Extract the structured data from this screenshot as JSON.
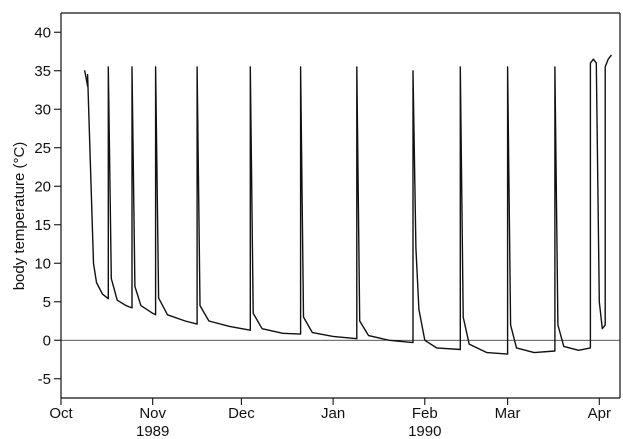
{
  "chart_data": {
    "type": "line",
    "title": "",
    "xlabel": "",
    "ylabel": "body temperature (°C)",
    "xlim": [
      "1989-10-01",
      "1990-04-08"
    ],
    "ylim": [
      -7.5,
      42.5
    ],
    "x_ticks": [
      {
        "date": "1989-10-01",
        "label": "Oct"
      },
      {
        "date": "1989-11-01",
        "label": "Nov"
      },
      {
        "date": "1989-12-01",
        "label": "Dec"
      },
      {
        "date": "1990-01-01",
        "label": "Jan"
      },
      {
        "date": "1990-02-01",
        "label": "Feb"
      },
      {
        "date": "1990-03-01",
        "label": "Mar"
      },
      {
        "date": "1990-04-01",
        "label": "Apr"
      }
    ],
    "year_labels": [
      {
        "date": "1989-11-01",
        "label": "1989"
      },
      {
        "date": "1990-02-01",
        "label": "1990"
      }
    ],
    "y_ticks": [
      -5,
      0,
      5,
      10,
      15,
      20,
      25,
      30,
      35,
      40
    ],
    "reference_line": 0,
    "grid": false,
    "legend": "none",
    "series": [
      {
        "points": [
          [
            "1989-10-09",
            35.0
          ],
          [
            "1989-10-10",
            33.0
          ],
          [
            "1989-10-10",
            34.5
          ],
          [
            "1989-10-11",
            22.0
          ],
          [
            "1989-10-12",
            10.0
          ],
          [
            "1989-10-13",
            7.5
          ],
          [
            "1989-10-15",
            6.0
          ],
          [
            "1989-10-17",
            5.4
          ],
          [
            "1989-10-17",
            35.5
          ],
          [
            "1989-10-18",
            8.0
          ],
          [
            "1989-10-20",
            5.2
          ],
          [
            "1989-10-23",
            4.5
          ],
          [
            "1989-10-25",
            4.2
          ],
          [
            "1989-10-25",
            35.5
          ],
          [
            "1989-10-26",
            7.0
          ],
          [
            "1989-10-28",
            4.5
          ],
          [
            "1989-11-01",
            3.5
          ],
          [
            "1989-11-02",
            3.3
          ],
          [
            "1989-11-02",
            35.5
          ],
          [
            "1989-11-03",
            5.5
          ],
          [
            "1989-11-06",
            3.3
          ],
          [
            "1989-11-12",
            2.5
          ],
          [
            "1989-11-16",
            2.1
          ],
          [
            "1989-11-16",
            35.5
          ],
          [
            "1989-11-17",
            4.5
          ],
          [
            "1989-11-20",
            2.5
          ],
          [
            "1989-11-27",
            1.8
          ],
          [
            "1989-12-04",
            1.3
          ],
          [
            "1989-12-04",
            35.5
          ],
          [
            "1989-12-05",
            3.5
          ],
          [
            "1989-12-08",
            1.5
          ],
          [
            "1989-12-15",
            0.9
          ],
          [
            "1989-12-21",
            0.8
          ],
          [
            "1989-12-21",
            35.5
          ],
          [
            "1989-12-22",
            3.0
          ],
          [
            "1989-12-25",
            1.0
          ],
          [
            "1990-01-01",
            0.5
          ],
          [
            "1990-01-09",
            0.2
          ],
          [
            "1990-01-09",
            35.5
          ],
          [
            "1990-01-10",
            2.5
          ],
          [
            "1990-01-13",
            0.6
          ],
          [
            "1990-01-20",
            0.0
          ],
          [
            "1990-01-28",
            -0.3
          ],
          [
            "1990-01-28",
            35.0
          ],
          [
            "1990-01-29",
            12.0
          ],
          [
            "1990-01-30",
            4.0
          ],
          [
            "1990-02-01",
            0.0
          ],
          [
            "1990-02-05",
            -1.0
          ],
          [
            "1990-02-13",
            -1.2
          ],
          [
            "1990-02-13",
            35.5
          ],
          [
            "1990-02-14",
            3.0
          ],
          [
            "1990-02-16",
            -0.5
          ],
          [
            "1990-02-22",
            -1.6
          ],
          [
            "1990-03-01",
            -1.8
          ],
          [
            "1990-03-01",
            35.5
          ],
          [
            "1990-03-02",
            2.0
          ],
          [
            "1990-03-04",
            -1.0
          ],
          [
            "1990-03-10",
            -1.6
          ],
          [
            "1990-03-17",
            -1.4
          ],
          [
            "1990-03-17",
            35.5
          ],
          [
            "1990-03-18",
            2.0
          ],
          [
            "1990-03-20",
            -0.8
          ],
          [
            "1990-03-25",
            -1.3
          ],
          [
            "1990-03-29",
            -1.0
          ],
          [
            "1990-03-29",
            36.0
          ],
          [
            "1990-03-30",
            36.5
          ],
          [
            "1990-03-31",
            36.0
          ],
          [
            "1990-04-01",
            5.0
          ],
          [
            "1990-04-02",
            1.5
          ],
          [
            "1990-04-03",
            2.0
          ],
          [
            "1990-04-03",
            35.5
          ],
          [
            "1990-04-04",
            36.5
          ],
          [
            "1990-04-05",
            37.0
          ]
        ]
      }
    ]
  }
}
